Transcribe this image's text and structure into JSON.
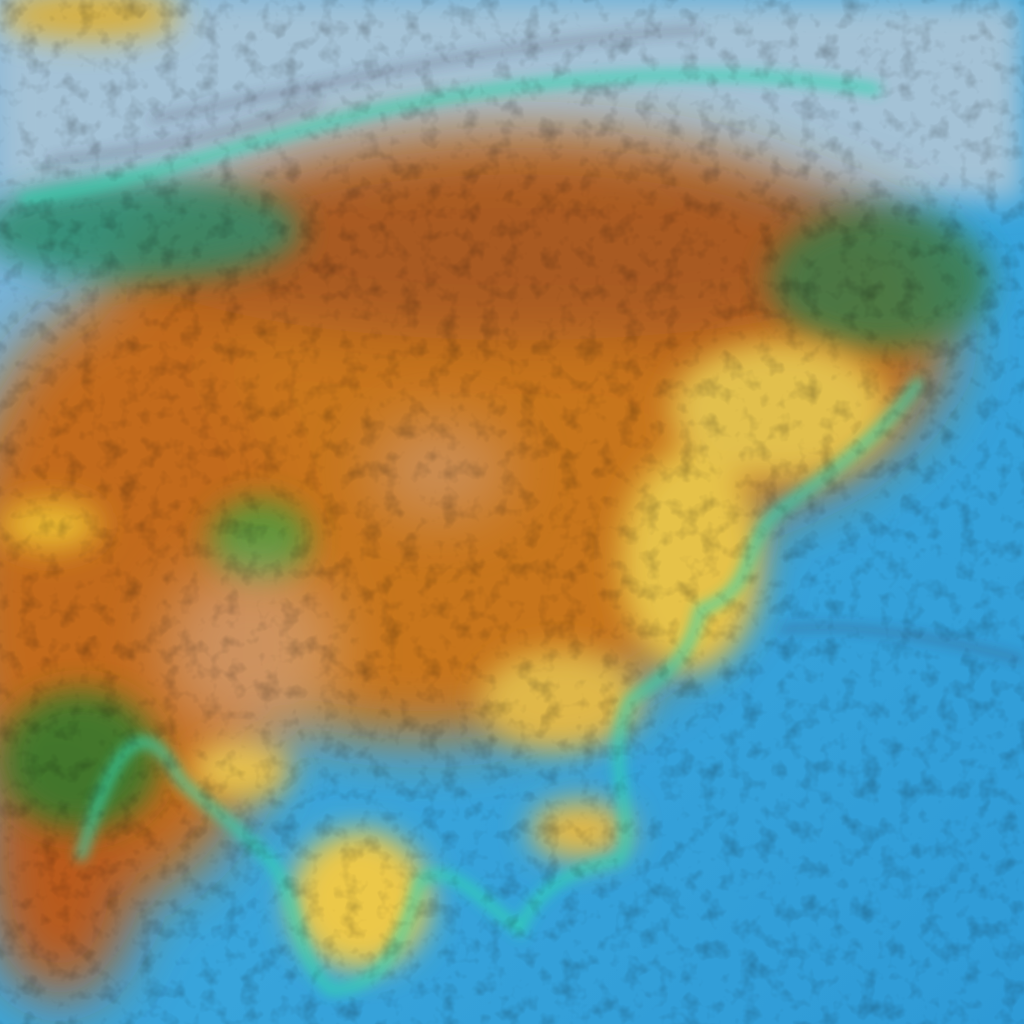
{
  "image": {
    "kind": "false-color satellite imagery",
    "colors": {
      "ocean": "#3aa6dc",
      "ocean_deep": "#2f93d0",
      "cloud_pale": "#9fc3d8",
      "land_orange": "#c8731c",
      "land_brown": "#a85a22",
      "land_yellow": "#e8c64a",
      "vegetation_green": "#3a9a3a",
      "coast_cyan": "#33d6b0",
      "dark_ridges": "#3a2a40"
    }
  }
}
